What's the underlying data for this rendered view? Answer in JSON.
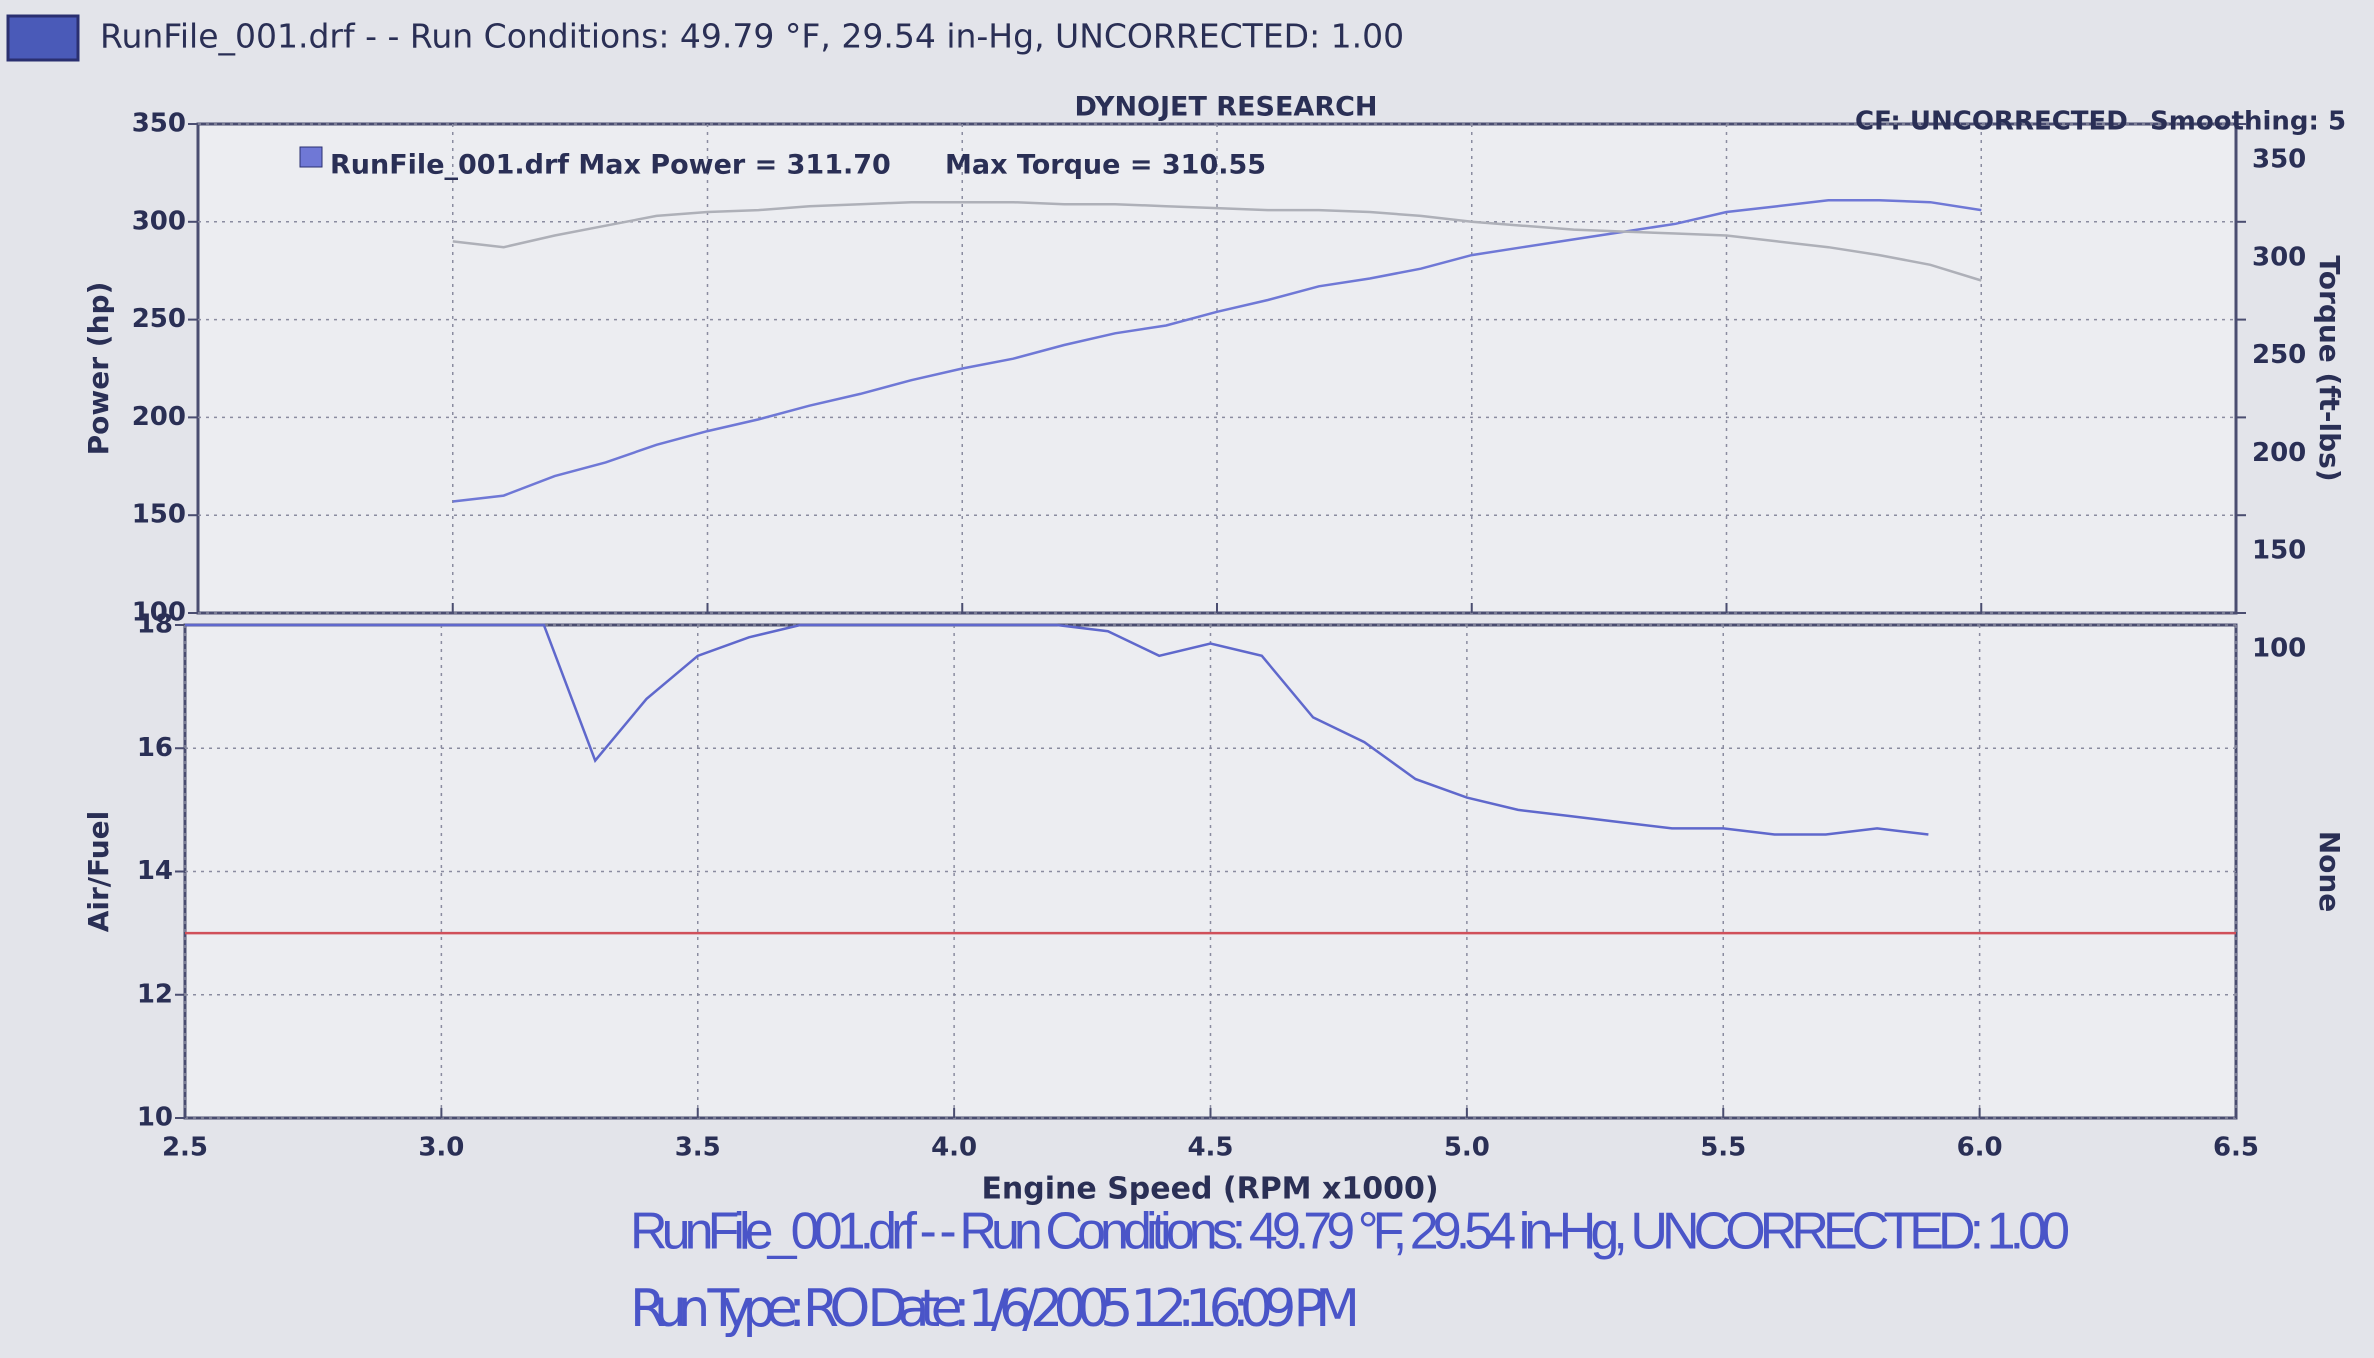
{
  "header": {
    "text": "RunFile_001.drf -  -  Run Conditions: 49.79 °F, 29.54 in-Hg, UNCORRECTED: 1.00"
  },
  "footer": {
    "line1": "RunFile_001.drf -  -  Run Conditions: 49.79 °F, 29.54 in-Hg, UNCORRECTED: 1.00",
    "line2": "Run Type: RO  Date: 1/6/2005 12:16:09 PM"
  },
  "chart_data": [
    {
      "type": "line",
      "title": "DYNOJET RESEARCH",
      "annotations": [
        "CF: UNCORRECTED",
        "Smoothing: 5"
      ],
      "legend_text": [
        "RunFile_001.drf Max Power = 311.70",
        "Max Torque = 310.55"
      ],
      "ylabel": "Power (hp)",
      "y2label": "Torque (ft-lbs)",
      "xlim": [
        2.5,
        6.5
      ],
      "xticks": [
        3,
        3.5,
        4,
        4.5,
        5,
        5.5,
        6
      ],
      "show_xtick_labels": false,
      "ylim": [
        100,
        350
      ],
      "yticks": [
        100,
        150,
        200,
        250,
        300,
        350
      ],
      "y2lim": [
        100,
        350
      ],
      "y2ticks": [
        100,
        150,
        200,
        250,
        300,
        350
      ],
      "grid": true,
      "series": [
        {
          "color": "#6f78d6",
          "x": [
            3.0,
            3.1,
            3.2,
            3.3,
            3.4,
            3.5,
            3.6,
            3.7,
            3.8,
            3.9,
            4.0,
            4.1,
            4.2,
            4.3,
            4.4,
            4.5,
            4.6,
            4.7,
            4.8,
            4.9,
            5.0,
            5.1,
            5.2,
            5.3,
            5.4,
            5.5,
            5.6,
            5.7,
            5.8,
            5.9,
            6.0
          ],
          "values": [
            157,
            160,
            170,
            177,
            186,
            193,
            199,
            206,
            212,
            219,
            225,
            230,
            237,
            243,
            247,
            254,
            260,
            267,
            271,
            276,
            283,
            287,
            291,
            295,
            299,
            305,
            308,
            311,
            311,
            310,
            306
          ]
        },
        {
          "color": "#aeb0b8",
          "axis": "y2",
          "x": [
            3.0,
            3.1,
            3.2,
            3.3,
            3.4,
            3.5,
            3.6,
            3.7,
            3.8,
            3.9,
            4.0,
            4.1,
            4.2,
            4.3,
            4.4,
            4.5,
            4.6,
            4.7,
            4.8,
            4.9,
            5.0,
            5.1,
            5.2,
            5.3,
            5.4,
            5.5,
            5.6,
            5.7,
            5.8,
            5.9,
            6.0
          ],
          "values": [
            290,
            287,
            293,
            298,
            303,
            305,
            306,
            308,
            309,
            310,
            310,
            310,
            309,
            309,
            308,
            307,
            306,
            306,
            305,
            303,
            300,
            298,
            296,
            295,
            294,
            293,
            290,
            287,
            283,
            278,
            270
          ]
        }
      ]
    },
    {
      "type": "line",
      "xlabel": "Engine Speed (RPM x1000)",
      "ylabel": "Air/Fuel",
      "y2label": "None",
      "xlim": [
        2.5,
        6.5
      ],
      "xticks": [
        2.5,
        {
          "value": 3,
          "label": "3.0"
        },
        3.5,
        {
          "value": 4,
          "label": "4.0"
        },
        4.5,
        {
          "value": 5,
          "label": "5.0"
        },
        5.5,
        {
          "value": 6,
          "label": "6.0"
        },
        6.5
      ],
      "show_xtick_labels": true,
      "ylim": [
        10,
        18
      ],
      "yticks": [
        10,
        12,
        14,
        16,
        18
      ],
      "grid": true,
      "series": [
        {
          "color": "#5f68cc",
          "x": [
            2.5,
            2.6,
            2.7,
            2.8,
            2.9,
            3.0,
            3.1,
            3.2,
            3.3,
            3.4,
            3.5,
            3.6,
            3.7,
            3.8,
            3.9,
            4.0,
            4.1,
            4.2,
            4.3,
            4.4,
            4.5,
            4.6,
            4.7,
            4.8,
            4.9,
            5.0,
            5.1,
            5.2,
            5.3,
            5.4,
            5.5,
            5.6,
            5.7,
            5.8,
            5.9
          ],
          "values": [
            18,
            18,
            18,
            18,
            18,
            18,
            18,
            18,
            15.8,
            16.8,
            17.5,
            17.8,
            18,
            18,
            18,
            18,
            18,
            18,
            17.9,
            17.5,
            17.7,
            17.5,
            16.5,
            16.1,
            15.5,
            15.2,
            15.0,
            14.9,
            14.8,
            14.7,
            14.7,
            14.6,
            14.6,
            14.7,
            14.6
          ]
        },
        {
          "color": "#d0505a",
          "x": [
            2.5,
            6.5
          ],
          "values": [
            13,
            13
          ]
        }
      ]
    }
  ]
}
